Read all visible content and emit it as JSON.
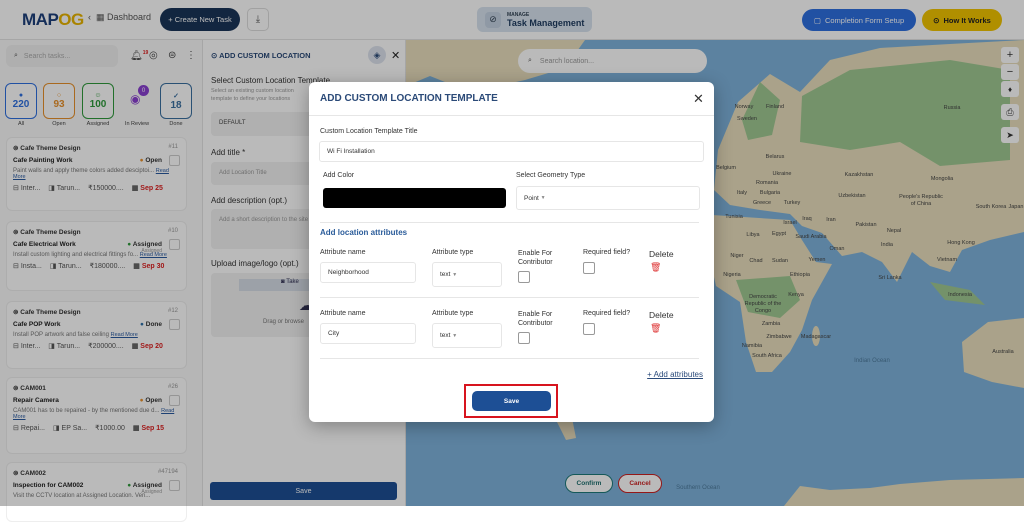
{
  "header": {
    "logo": {
      "text_main": "MAP",
      "text_accent": "OG"
    },
    "dashboard_link": "Dashboard",
    "create_task": "+ Create New Task",
    "manage_label": "MANAGE",
    "manage_title": "Task Management",
    "completion_form": "Completion Form Setup",
    "how_it_works": "How It Works"
  },
  "sidebar": {
    "search_placeholder": "Search tasks...",
    "notification_count": "19",
    "stats": [
      {
        "value": "220",
        "label": "All",
        "color": "#2e6fe0"
      },
      {
        "value": "93",
        "label": "Open",
        "color": "#e8912b"
      },
      {
        "value": "100",
        "label": "Assigned",
        "color": "#2f9a3c"
      },
      {
        "value": "0",
        "label": "In Review",
        "color": "#8a3fd1"
      },
      {
        "value": "18",
        "label": "Done",
        "color": "#3a6fa0"
      }
    ],
    "tasks": [
      {
        "project": "Cafe Theme Design",
        "id": "#11",
        "title": "Cafe Painting Work",
        "status": "Open",
        "status_sub": "",
        "description": "Paint walls and apply theme colors added desciptoi...",
        "read_more": "Read More",
        "category": "Inter...",
        "assignee": "Tarun...",
        "amount": "₹150000....",
        "due": "Sep 25"
      },
      {
        "project": "Cafe Theme Design",
        "id": "#10",
        "title": "Cafe Electrical Work",
        "status": "Assigned",
        "status_sub": "Assigned",
        "description": "Install custom lighting and electrical fittings fo...",
        "read_more": "Read More",
        "category": "Insta...",
        "assignee": "Tarun...",
        "amount": "₹180000....",
        "due": "Sep 30"
      },
      {
        "project": "Cafe Theme Design",
        "id": "#12",
        "title": "Cafe POP Work",
        "status": "Done",
        "status_sub": "",
        "description": "Install POP artwork and false ceiling",
        "read_more": "Read More",
        "category": "Inter...",
        "assignee": "Tarun...",
        "amount": "₹200000....",
        "due": "Sep 20"
      },
      {
        "project": "CAM001",
        "id": "#26",
        "title": "Repair Camera",
        "status": "Open",
        "status_sub": "",
        "description": "CAM001 has to be repaired - by the mentioned due d...",
        "read_more": "Read More",
        "category": "Repai...",
        "assignee": "EP Sa...",
        "amount": "₹1000.00",
        "due": "Sep 15"
      },
      {
        "project": "CAM002",
        "id": "#47194",
        "title": "Inspection for CAM002",
        "status": "Assigned",
        "status_sub": "Assigned",
        "description": "Visit the CCTV location at Assigned Location. Veri...",
        "read_more": "",
        "category": "",
        "assignee": "",
        "amount": "",
        "due": ""
      }
    ],
    "status_colors": {
      "Open": "#e8912b",
      "Assigned": "#2f9a3c",
      "Done": "#2e6fa8"
    }
  },
  "panel": {
    "title": "ADD CUSTOM LOCATION",
    "template_label": "Select Custom Location Template",
    "template_help": "Select an existing custom location template to define your locations",
    "template_value": "DEFAULT",
    "title_label": "Add title *",
    "title_placeholder": "Add Location Title",
    "desc_label": "Add description (opt.)",
    "desc_placeholder": "Add a short description to the site",
    "upload_label": "Upload image/logo (opt.)",
    "take_photo": "Take",
    "drag_text": "Drag or browse",
    "save": "Save"
  },
  "map": {
    "search_placeholder": "Search location...",
    "confirm": "Confirm",
    "cancel": "Cancel",
    "labels": [
      "Norway",
      "Finland",
      "Sweden",
      "Russia",
      "Belarus",
      "Belgium",
      "Ukraine",
      "Kazakhstan",
      "Romania",
      "Mongolia",
      "Italy",
      "Bulgaria",
      "Greece",
      "Turkey",
      "Uzbekistan",
      "People's Republic of China",
      "South Korea",
      "Japan",
      "Tunisia",
      "Israel",
      "Iraq",
      "Iran",
      "Pakistan",
      "Nepal",
      "Libya",
      "Egypt",
      "Saudi Arabia",
      "Oman",
      "India",
      "Hong Kong",
      "Niger",
      "Chad",
      "Sudan",
      "Yemen",
      "Vietnam",
      "Nigeria",
      "Ethiopia",
      "Sri Lanka",
      "Indonesia",
      "Kenya",
      "Democratic Republic of the Congo",
      "Zambia",
      "Zimbabwe",
      "Madagascar",
      "Namibia",
      "South Africa",
      "Australia",
      "Indian Ocean",
      "Southern Ocean"
    ]
  },
  "modal": {
    "title": "ADD CUSTOM LOCATION TEMPLATE",
    "template_title_label": "Custom Location Template Title",
    "template_title_value": "Wi Fi Installation",
    "color_label": "Add Color",
    "color_value": "#000000",
    "geometry_label": "Select Geometry Type",
    "geometry_value": "Point",
    "attributes_heading": "Add location attributes",
    "col_name": "Attribute name",
    "col_type": "Attribute type",
    "col_contributor": "Enable For Contributor",
    "col_required": "Required field?",
    "col_delete": "Delete",
    "attributes": [
      {
        "name": "Neighborhood",
        "type": "text",
        "contributor": false,
        "required": false
      },
      {
        "name": "City",
        "type": "text",
        "contributor": false,
        "required": false
      }
    ],
    "add_attributes": "+ Add attributes",
    "save": "Save"
  }
}
